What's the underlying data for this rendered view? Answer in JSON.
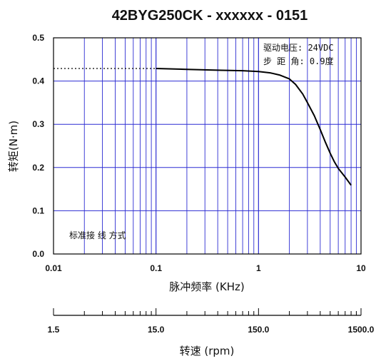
{
  "chart_data": {
    "type": "line",
    "title": "42BYG250CK - xxxxxx - 0151",
    "xlabel": "脉冲频率 (KHz)",
    "ylabel": "转矩(N·m)",
    "x_scale": "log",
    "xlim": [
      0.01,
      10
    ],
    "ylim": [
      0,
      0.5
    ],
    "x_ticks": [
      "0.01",
      "0.1",
      "1",
      "10"
    ],
    "y_ticks": [
      "0.0",
      "0.1",
      "0.2",
      "0.3",
      "0.4",
      "0.5"
    ],
    "grid": true,
    "series": [
      {
        "x": [
          0.1,
          0.2,
          0.4,
          0.7,
          1.0,
          1.3,
          1.6,
          2.0,
          2.3,
          2.7,
          3.0,
          3.5,
          4.0,
          4.5,
          5.0,
          5.5,
          6.0,
          7.0,
          8.0
        ],
        "y": [
          0.429,
          0.427,
          0.425,
          0.424,
          0.422,
          0.419,
          0.414,
          0.405,
          0.392,
          0.37,
          0.35,
          0.32,
          0.288,
          0.258,
          0.233,
          0.213,
          0.198,
          0.178,
          0.159
        ]
      }
    ],
    "reference_line": {
      "y": 0.429,
      "x_from": 0.01,
      "x_to": 0.1,
      "style": "dotted"
    },
    "annotations": {
      "drive_voltage": "驱动电压: 24VDC",
      "step_angle": "步 距 角: 0.9度",
      "wiring": "标准接 线 方式"
    },
    "secondary_axis": {
      "label": "转速 (rpm)",
      "ticks": [
        "1.5",
        "15.0",
        "150.0",
        "1500.0"
      ],
      "scale": "log",
      "range": [
        1.5,
        1500
      ]
    }
  }
}
